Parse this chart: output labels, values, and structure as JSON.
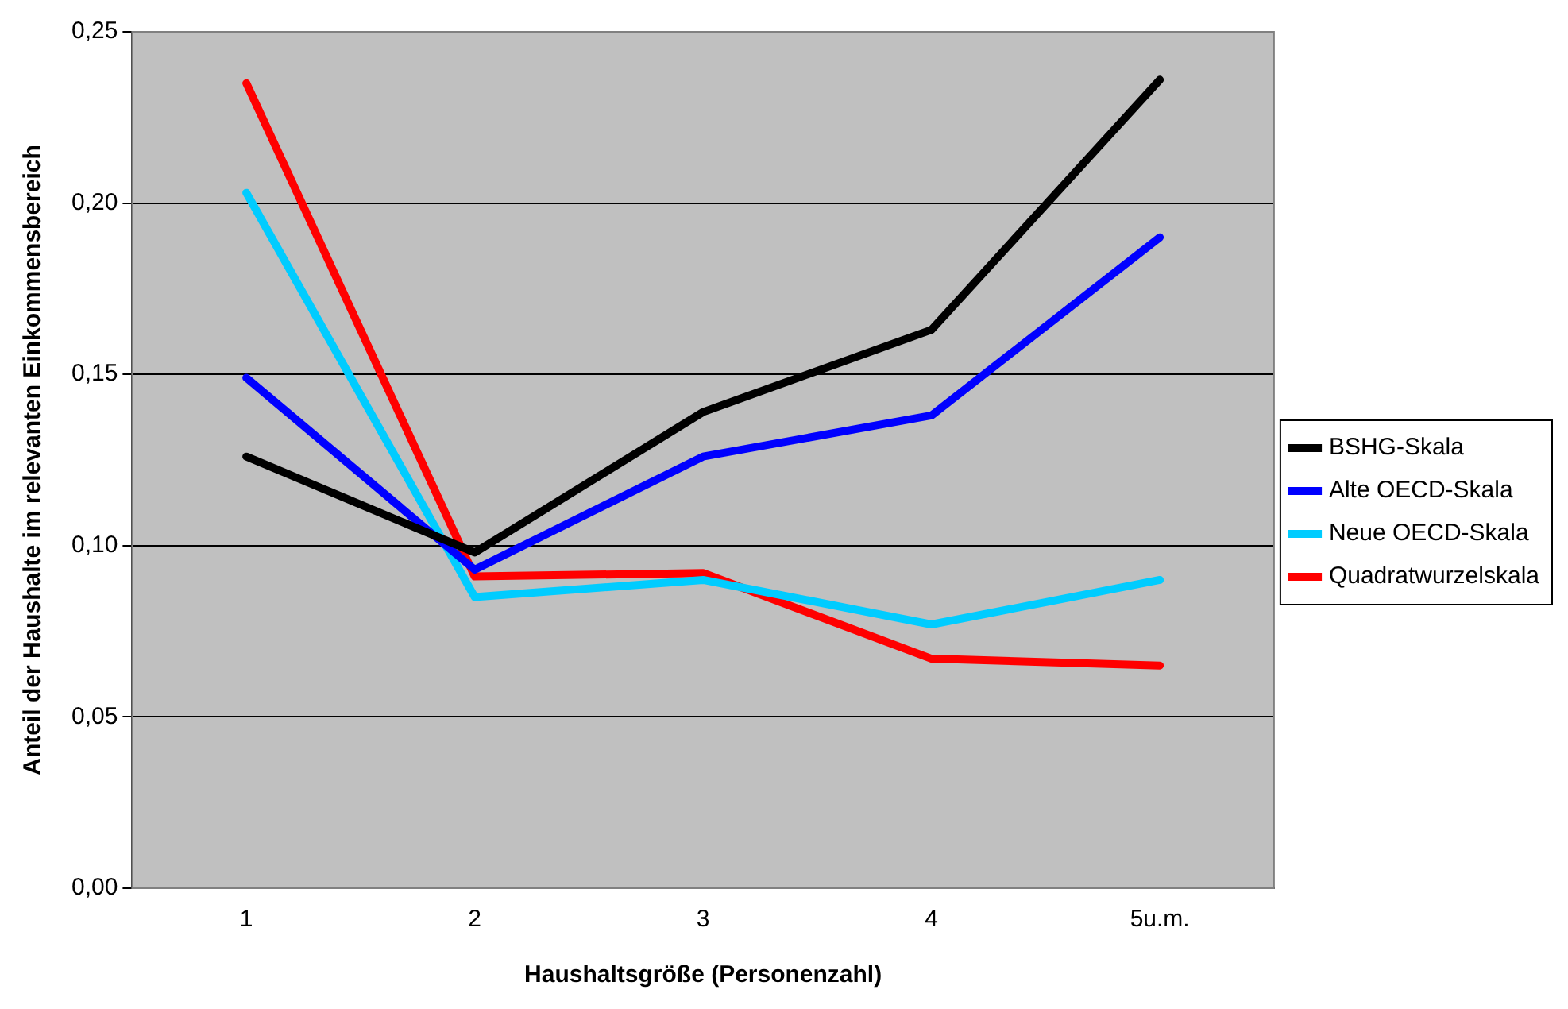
{
  "chart_data": {
    "type": "line",
    "xlabel": "Haushaltsgröße (Personenzahl)",
    "ylabel": "Anteil der Haushalte im relevanten Einkommensbereich",
    "categories": [
      "1",
      "2",
      "3",
      "4",
      "5u.m."
    ],
    "series": [
      {
        "name": "BSHG-Skala",
        "color": "#000000",
        "values": [
          0.126,
          0.098,
          0.139,
          0.163,
          0.236
        ]
      },
      {
        "name": "Alte OECD-Skala",
        "color": "#0000ff",
        "values": [
          0.149,
          0.093,
          0.126,
          0.138,
          0.19
        ]
      },
      {
        "name": "Neue OECD-Skala",
        "color": "#00ccff",
        "values": [
          0.203,
          0.085,
          0.09,
          0.077,
          0.09
        ]
      },
      {
        "name": "Quadratwurzelskala",
        "color": "#ff0000",
        "values": [
          0.235,
          0.091,
          0.092,
          0.067,
          0.065
        ]
      }
    ],
    "ylim": [
      0,
      0.25
    ],
    "yticks": [
      {
        "value": 0,
        "label": "0,00"
      },
      {
        "value": 0.05,
        "label": "0,05"
      },
      {
        "value": 0.1,
        "label": "0,10"
      },
      {
        "value": 0.15,
        "label": "0,15"
      },
      {
        "value": 0.2,
        "label": "0,20"
      },
      {
        "value": 0.25,
        "label": "0,25"
      }
    ],
    "grid": "y",
    "legend": "right",
    "marker": "none",
    "line_style": "solid"
  }
}
